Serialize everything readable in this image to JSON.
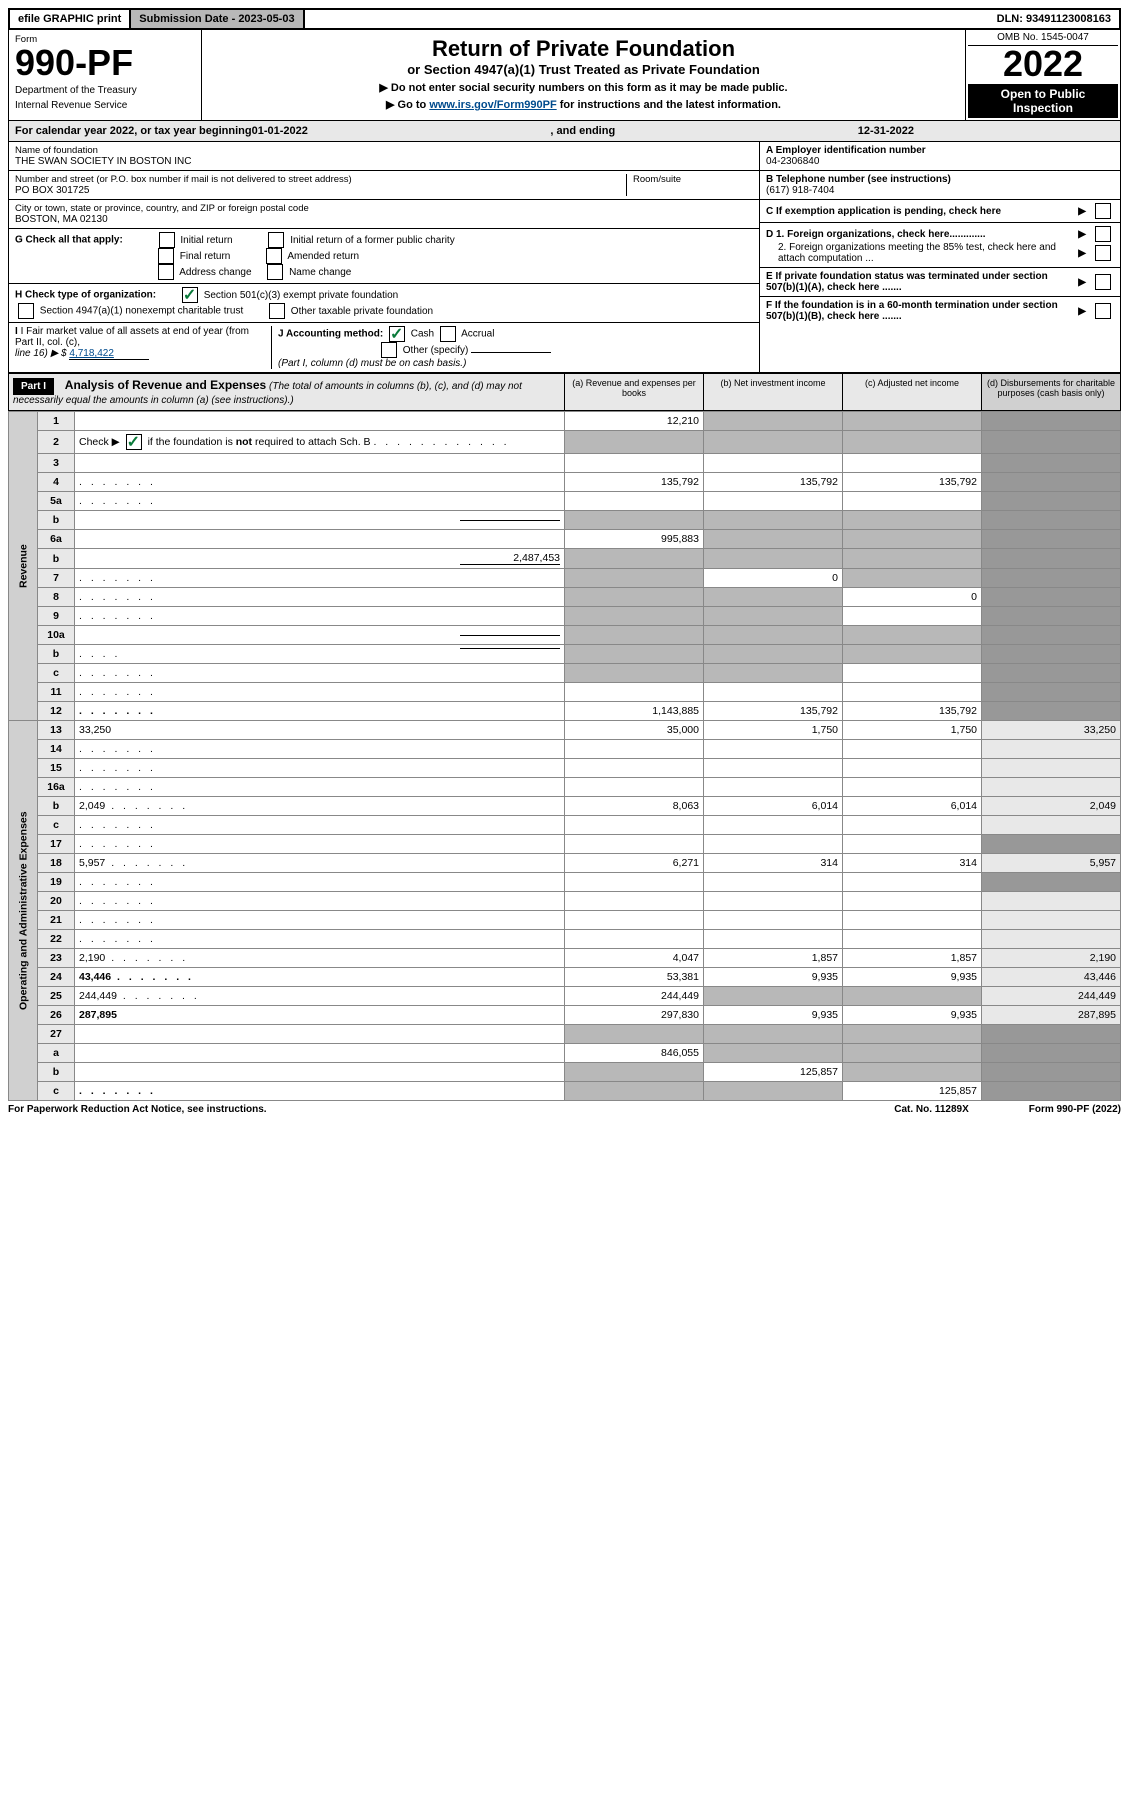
{
  "top_bar": {
    "efile": "efile GRAPHIC print",
    "submission_label": "Submission Date - 2023-05-03",
    "dln": "DLN: 93491123008163"
  },
  "header": {
    "form_label": "Form",
    "form_number": "990-PF",
    "department": "Department of the Treasury",
    "irs": "Internal Revenue Service",
    "title": "Return of Private Foundation",
    "subtitle": "or Section 4947(a)(1) Trust Treated as Private Foundation",
    "instruction1": "▶ Do not enter social security numbers on this form as it may be made public.",
    "instruction2_prefix": "▶ Go to ",
    "instruction2_link": "www.irs.gov/Form990PF",
    "instruction2_suffix": " for instructions and the latest information.",
    "omb": "OMB No. 1545-0047",
    "year": "2022",
    "open_public": "Open to Public Inspection"
  },
  "calendar_year": {
    "prefix": "For calendar year 2022, or tax year beginning ",
    "begin": "01-01-2022",
    "middle": ", and ending ",
    "end": "12-31-2022"
  },
  "foundation": {
    "name_label": "Name of foundation",
    "name": "THE SWAN SOCIETY IN BOSTON INC",
    "address_label": "Number and street (or P.O. box number if mail is not delivered to street address)",
    "address": "PO BOX 301725",
    "room_label": "Room/suite",
    "city_label": "City or town, state or province, country, and ZIP or foreign postal code",
    "city": "BOSTON, MA  02130"
  },
  "right_info": {
    "A_label": "A Employer identification number",
    "A_value": "04-2306840",
    "B_label": "B Telephone number (see instructions)",
    "B_value": "(617) 918-7404",
    "C_label": "C If exemption application is pending, check here",
    "D1_label": "D 1. Foreign organizations, check here.............",
    "D2_label": "2. Foreign organizations meeting the 85% test, check here and attach computation ...",
    "E_label": "E If private foundation status was terminated under section 507(b)(1)(A), check here .......",
    "F_label": "F If the foundation is in a 60-month termination under section 507(b)(1)(B), check here ......."
  },
  "checks": {
    "G_label": "G Check all that apply:",
    "initial": "Initial return",
    "initial_former": "Initial return of a former public charity",
    "final": "Final return",
    "amended": "Amended return",
    "address": "Address change",
    "name": "Name change",
    "H_label": "H Check type of organization:",
    "sec501": "Section 501(c)(3) exempt private foundation",
    "sec4947": "Section 4947(a)(1) nonexempt charitable trust",
    "other_taxable": "Other taxable private foundation",
    "I_label": "I Fair market value of all assets at end of year (from Part II, col. (c),",
    "I_line": "line 16) ▶ $",
    "I_value": "4,718,422",
    "J_label": "J Accounting method:",
    "cash": "Cash",
    "accrual": "Accrual",
    "other_spec": "Other (specify)",
    "J_note": "(Part I, column (d) must be on cash basis.)"
  },
  "part1": {
    "label": "Part I",
    "title": "Analysis of Revenue and Expenses",
    "note": " (The total of amounts in columns (b), (c), and (d) may not necessarily equal the amounts in column (a) (see instructions).)",
    "col_a": "(a) Revenue and expenses per books",
    "col_b": "(b) Net investment income",
    "col_c": "(c) Adjusted net income",
    "col_d": "(d) Disbursements for charitable purposes (cash basis only)"
  },
  "sections": {
    "revenue": "Revenue",
    "operating": "Operating and Administrative Expenses"
  },
  "rows": [
    {
      "n": "1",
      "d": "",
      "a": "12,210",
      "b": "",
      "c": "",
      "sa": false,
      "sb": true,
      "sc": true,
      "sd": true
    },
    {
      "n": "2",
      "d": "",
      "inline_check": true,
      "a": "",
      "b": "",
      "c": "",
      "sa": true,
      "sb": true,
      "sc": true,
      "sd": true,
      "dots": true
    },
    {
      "n": "3",
      "d": "",
      "a": "",
      "b": "",
      "c": "",
      "sd": true
    },
    {
      "n": "4",
      "d": "",
      "a": "135,792",
      "b": "135,792",
      "c": "135,792",
      "sd": true,
      "dots": true
    },
    {
      "n": "5a",
      "d": "",
      "a": "",
      "b": "",
      "c": "",
      "sd": true,
      "dots": true
    },
    {
      "n": "b",
      "d": "",
      "a": "",
      "b": "",
      "c": "",
      "sa": true,
      "sb": true,
      "sc": true,
      "sd": true,
      "inline_underline": true
    },
    {
      "n": "6a",
      "d": "",
      "a": "995,883",
      "b": "",
      "c": "",
      "sb": true,
      "sc": true,
      "sd": true
    },
    {
      "n": "b",
      "d": "",
      "a": "",
      "b": "",
      "c": "",
      "sa": true,
      "sb": true,
      "sc": true,
      "sd": true,
      "inline_val": "2,487,453"
    },
    {
      "n": "7",
      "d": "",
      "a": "",
      "b": "0",
      "c": "",
      "sa": true,
      "sc": true,
      "sd": true,
      "dots": true
    },
    {
      "n": "8",
      "d": "",
      "a": "",
      "b": "",
      "c": "0",
      "sa": true,
      "sb": true,
      "sd": true,
      "dots": true
    },
    {
      "n": "9",
      "d": "",
      "a": "",
      "b": "",
      "c": "",
      "sa": true,
      "sb": true,
      "sd": true,
      "dots": true
    },
    {
      "n": "10a",
      "d": "",
      "a": "",
      "b": "",
      "c": "",
      "sa": true,
      "sb": true,
      "sc": true,
      "sd": true,
      "inline_underline": true
    },
    {
      "n": "b",
      "d": "",
      "a": "",
      "b": "",
      "c": "",
      "sa": true,
      "sb": true,
      "sc": true,
      "sd": true,
      "inline_underline": true,
      "dots": true
    },
    {
      "n": "c",
      "d": "",
      "a": "",
      "b": "",
      "c": "",
      "sa": true,
      "sb": true,
      "sd": true,
      "dots": true
    },
    {
      "n": "11",
      "d": "",
      "a": "",
      "b": "",
      "c": "",
      "sd": true,
      "dots": true
    },
    {
      "n": "12",
      "d": "",
      "a": "1,143,885",
      "b": "135,792",
      "c": "135,792",
      "bold": true,
      "sd": true,
      "dots": true
    },
    {
      "n": "13",
      "d": "33,250",
      "a": "35,000",
      "b": "1,750",
      "c": "1,750"
    },
    {
      "n": "14",
      "d": "",
      "a": "",
      "b": "",
      "c": "",
      "dots": true
    },
    {
      "n": "15",
      "d": "",
      "a": "",
      "b": "",
      "c": "",
      "dots": true
    },
    {
      "n": "16a",
      "d": "",
      "a": "",
      "b": "",
      "c": "",
      "dots": true
    },
    {
      "n": "b",
      "d": "2,049",
      "a": "8,063",
      "b": "6,014",
      "c": "6,014",
      "dots": true
    },
    {
      "n": "c",
      "d": "",
      "a": "",
      "b": "",
      "c": "",
      "dots": true
    },
    {
      "n": "17",
      "d": "",
      "a": "",
      "b": "",
      "c": "",
      "dots": true,
      "sd": true
    },
    {
      "n": "18",
      "d": "5,957",
      "a": "6,271",
      "b": "314",
      "c": "314",
      "dots": true
    },
    {
      "n": "19",
      "d": "",
      "a": "",
      "b": "",
      "c": "",
      "dots": true,
      "sd": true
    },
    {
      "n": "20",
      "d": "",
      "a": "",
      "b": "",
      "c": "",
      "dots": true
    },
    {
      "n": "21",
      "d": "",
      "a": "",
      "b": "",
      "c": "",
      "dots": true
    },
    {
      "n": "22",
      "d": "",
      "a": "",
      "b": "",
      "c": "",
      "dots": true
    },
    {
      "n": "23",
      "d": "2,190",
      "a": "4,047",
      "b": "1,857",
      "c": "1,857",
      "dots": true
    },
    {
      "n": "24",
      "d": "43,446",
      "a": "53,381",
      "b": "9,935",
      "c": "9,935",
      "bold": true,
      "dots": true
    },
    {
      "n": "25",
      "d": "244,449",
      "a": "244,449",
      "b": "",
      "c": "",
      "dots": true,
      "sb": true,
      "sc": true
    },
    {
      "n": "26",
      "d": "287,895",
      "a": "297,830",
      "b": "9,935",
      "c": "9,935",
      "bold": true
    },
    {
      "n": "27",
      "d": "",
      "a": "",
      "b": "",
      "c": "",
      "sa": true,
      "sb": true,
      "sc": true,
      "sd": true
    },
    {
      "n": "a",
      "d": "",
      "a": "846,055",
      "b": "",
      "c": "",
      "bold": true,
      "sb": true,
      "sc": true,
      "sd": true
    },
    {
      "n": "b",
      "d": "",
      "a": "",
      "b": "125,857",
      "c": "",
      "bold": true,
      "sa": true,
      "sc": true,
      "sd": true
    },
    {
      "n": "c",
      "d": "",
      "a": "",
      "b": "",
      "c": "125,857",
      "bold": true,
      "sa": true,
      "sb": true,
      "sd": true,
      "dots": true
    }
  ],
  "footer": {
    "paperwork": "For Paperwork Reduction Act Notice, see instructions.",
    "catno": "Cat. No. 11289X",
    "formref": "Form 990-PF (2022)"
  }
}
